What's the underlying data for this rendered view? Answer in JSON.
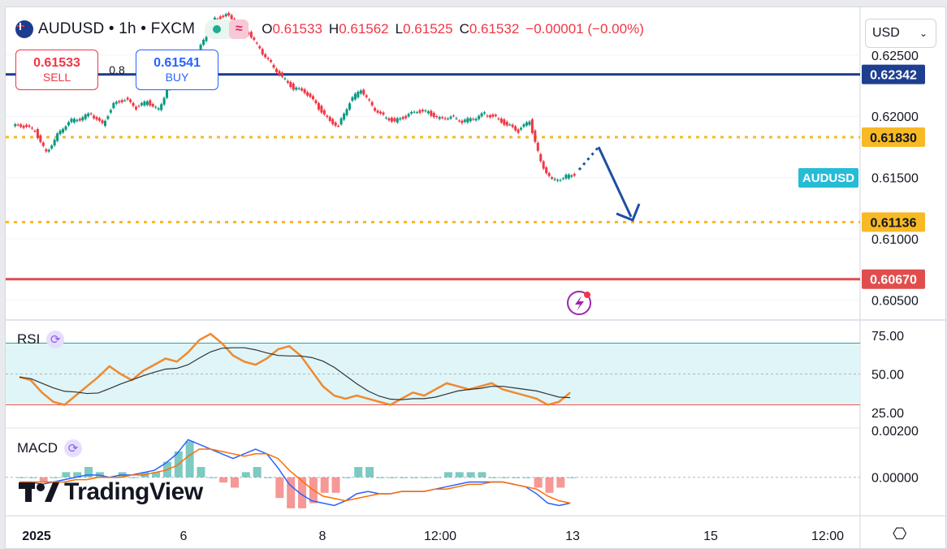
{
  "header": {
    "symbol_title": "AUDUSD • 1h • FXCM",
    "ohlc": {
      "o_label": "O",
      "o": "0.61533",
      "h_label": "H",
      "h": "0.61562",
      "l_label": "L",
      "l": "0.61525",
      "c_label": "C",
      "c": "0.61532",
      "change": "−0.00001 (−0.00%)"
    },
    "sell_price": "0.61533",
    "sell_label": "SELL",
    "spread": "0.8",
    "buy_price": "0.61541",
    "buy_label": "BUY",
    "currency": "USD",
    "symbol_tag": "AUDUSD"
  },
  "indicators": {
    "rsi_label": "RSI",
    "macd_label": "MACD"
  },
  "branding": {
    "logo_text": "TradingView"
  },
  "colors": {
    "up": "#089981",
    "down": "#f23645",
    "blue_level": "#1e3f8f",
    "gold_level": "#f7b924",
    "red_level": "#e14d4d",
    "rsi_line": "#f0892f",
    "rsi_band": "#dff5f8",
    "macd_line": "#2962ff",
    "signal_line": "#ff6d00",
    "arrow": "#1f4ea3"
  },
  "chart_data": {
    "type": "candlestick",
    "symbol": "AUDUSD",
    "timeframe": "1h",
    "x_ticks": [
      "2025",
      "6",
      "8",
      "12:00",
      "13",
      "15",
      "12:00"
    ],
    "y_ticks": [
      "0.62500",
      "0.62000",
      "0.61500",
      "0.61000",
      "0.60500"
    ],
    "y_range": [
      0.6035,
      0.6289
    ],
    "close_path": [
      0.6192,
      0.6188,
      0.617,
      0.6185,
      0.6196,
      0.6198,
      0.6202,
      0.6193,
      0.621,
      0.6214,
      0.6207,
      0.6212,
      0.6205,
      0.6228,
      0.6232,
      0.6242,
      0.6262,
      0.6279,
      0.6283,
      0.6276,
      0.6268,
      0.6255,
      0.6243,
      0.6232,
      0.6223,
      0.622,
      0.621,
      0.6198,
      0.6192,
      0.6212,
      0.6222,
      0.6208,
      0.62,
      0.6196,
      0.62,
      0.6204,
      0.6203,
      0.6198,
      0.62,
      0.6196,
      0.6198,
      0.6202,
      0.6199,
      0.6193,
      0.6188,
      0.6196,
      0.6162,
      0.6148,
      0.615,
      0.6153
    ],
    "levels": [
      {
        "label": "0.62342",
        "value": 0.62342,
        "style": "solid-blue"
      },
      {
        "label": "0.61830",
        "value": 0.6183,
        "style": "dotted-gold"
      },
      {
        "label": "0.61136",
        "value": 0.61136,
        "style": "dotted-gold"
      },
      {
        "label": "0.60670",
        "value": 0.6067,
        "style": "solid-red"
      }
    ],
    "last_price": "0.61532",
    "rsi": {
      "ticks": [
        "75.00",
        "50.00",
        "25.00"
      ],
      "upper": 70,
      "lower": 30,
      "values": [
        48,
        46,
        38,
        32,
        30,
        36,
        42,
        48,
        55,
        50,
        46,
        52,
        56,
        60,
        58,
        64,
        72,
        76,
        70,
        62,
        58,
        56,
        60,
        66,
        68,
        62,
        52,
        42,
        36,
        34,
        36,
        34,
        32,
        30,
        34,
        38,
        36,
        40,
        44,
        42,
        40,
        42,
        44,
        40,
        38,
        36,
        34,
        30,
        32,
        38
      ]
    },
    "macd": {
      "ticks": [
        "0.00200",
        "0.00000"
      ],
      "macd": [
        -0.0002,
        -0.0002,
        -0.0003,
        -0.0002,
        -0.0001,
        0.0,
        0.0001,
        0.0001,
        0.0,
        0.0001,
        0.0001,
        0.0002,
        0.0003,
        0.0006,
        0.001,
        0.0016,
        0.0014,
        0.0012,
        0.001,
        0.0008,
        0.001,
        0.0012,
        0.001,
        0.0004,
        -0.0003,
        -0.0007,
        -0.001,
        -0.0011,
        -0.0012,
        -0.001,
        -0.0007,
        -0.0006,
        -0.0007,
        -0.0007,
        -0.0006,
        -0.0006,
        -0.0006,
        -0.0005,
        -0.0004,
        -0.0003,
        -0.0002,
        -0.0002,
        -0.0002,
        -0.0002,
        -0.0003,
        -0.0004,
        -0.0007,
        -0.0011,
        -0.0012,
        -0.0011
      ],
      "signal": [
        -0.0002,
        -0.0002,
        -0.0002,
        -0.0002,
        -0.0002,
        -0.0001,
        -0.0001,
        0.0,
        0.0,
        0.0,
        0.0001,
        0.0001,
        0.0002,
        0.0003,
        0.0005,
        0.0009,
        0.0012,
        0.0012,
        0.0011,
        0.001,
        0.0009,
        0.001,
        0.001,
        0.0008,
        0.0003,
        -0.0001,
        -0.0005,
        -0.0008,
        -0.0009,
        -0.001,
        -0.0009,
        -0.0008,
        -0.0007,
        -0.0007,
        -0.0006,
        -0.0006,
        -0.0006,
        -0.0005,
        -0.0005,
        -0.0004,
        -0.0003,
        -0.0003,
        -0.0002,
        -0.0002,
        -0.0003,
        -0.0004,
        -0.0005,
        -0.0008,
        -0.001,
        -0.0011
      ]
    }
  }
}
